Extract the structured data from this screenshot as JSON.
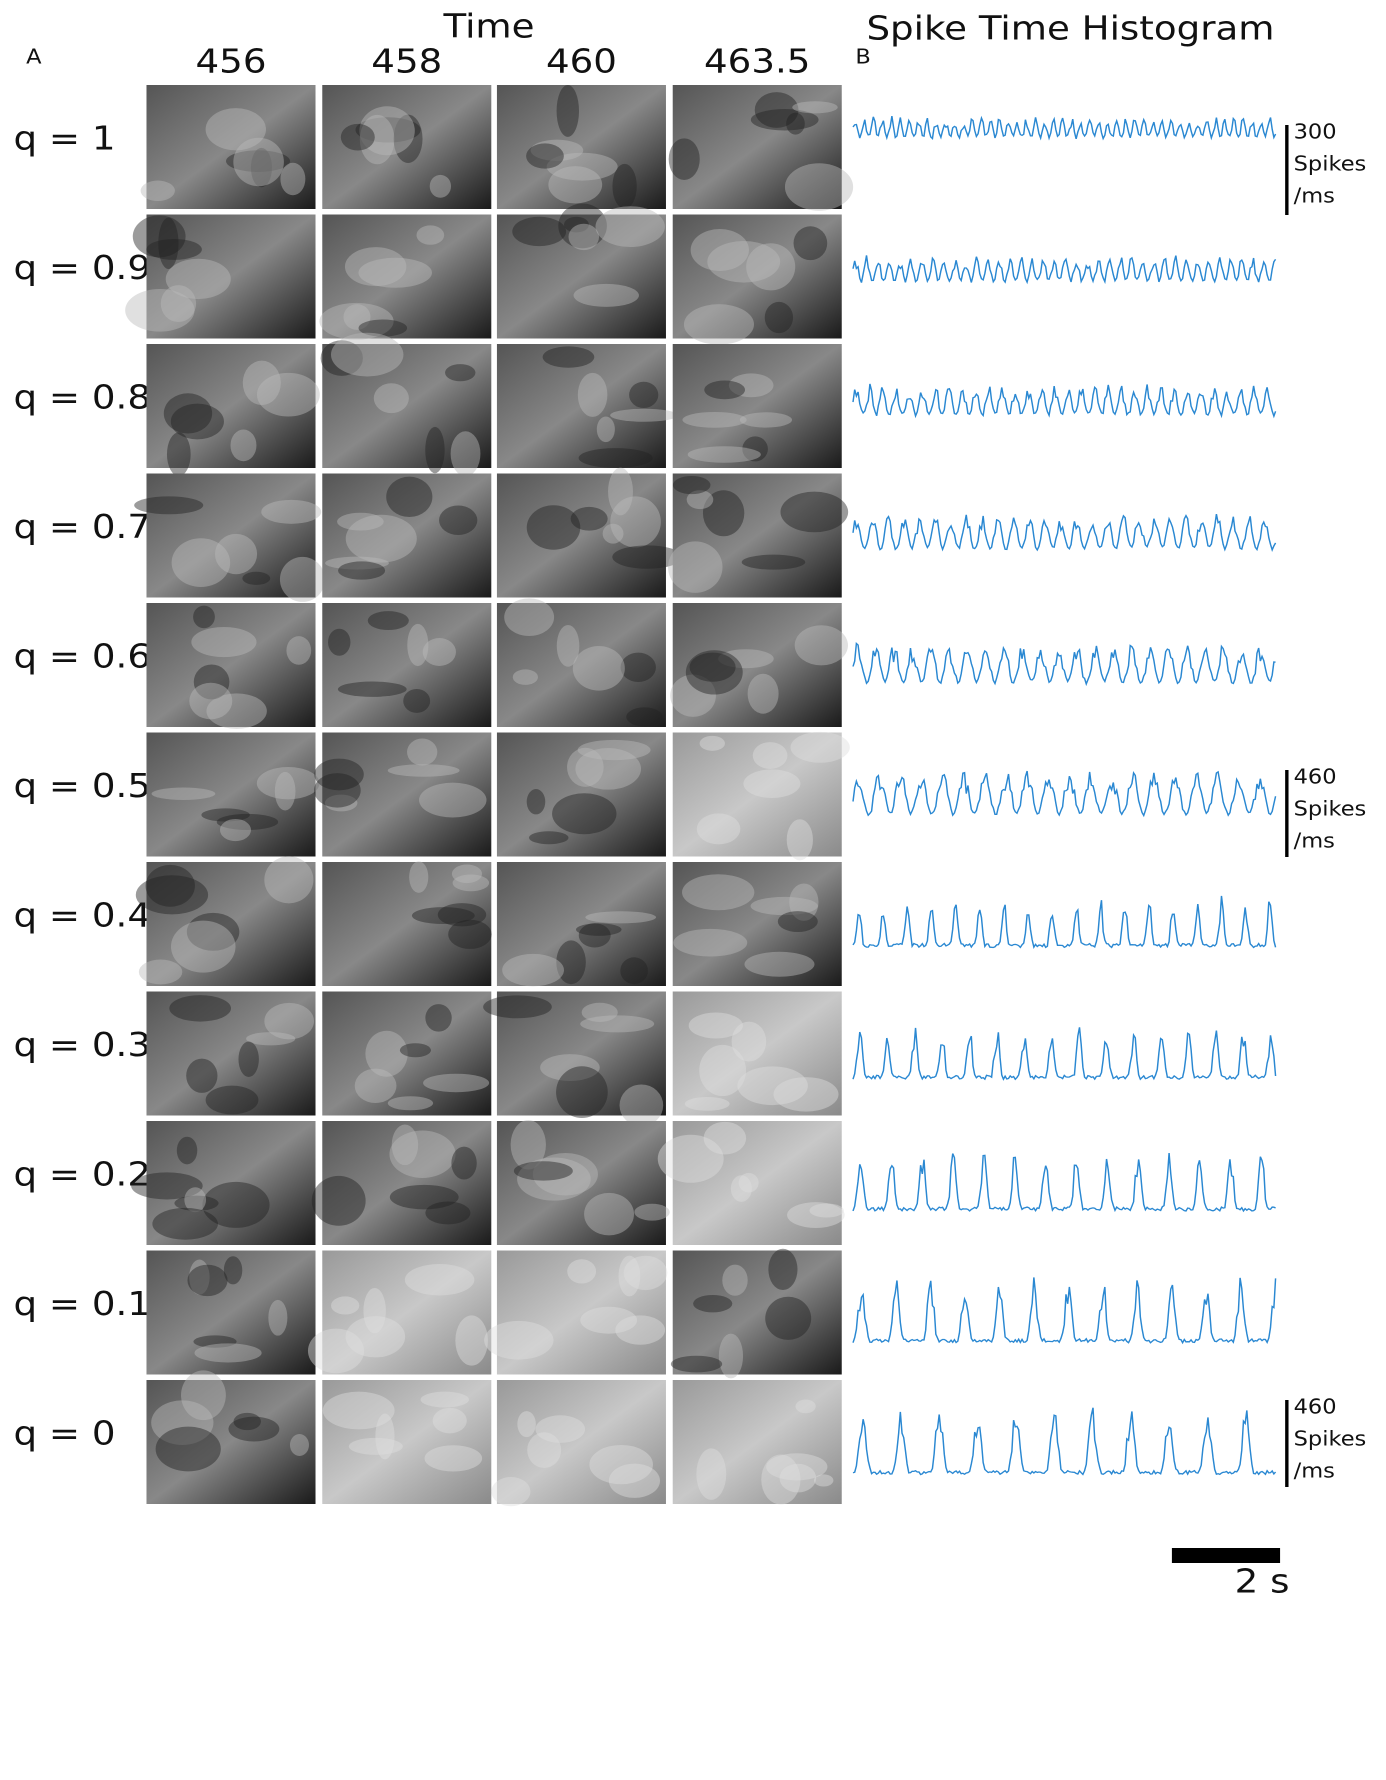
{
  "panel_a_label": "A",
  "panel_b_label": "B",
  "time_label": "Time",
  "histogram_title": "Spike Time Histogram",
  "times": [
    "456",
    "458",
    "460",
    "463.5"
  ],
  "rows": [
    "q = 1",
    "q = 0.9",
    "q = 0.8",
    "q = 0.7",
    "q = 0.6",
    "q = 0.5",
    "q = 0.4",
    "q = 0.3",
    "q = 0.2",
    "q = 0.1",
    "q = 0"
  ],
  "scale_bars": [
    {
      "value": "300",
      "unit": "Spikes",
      "per": "/ms"
    },
    {
      "value": "460",
      "unit": "Spikes",
      "per": "/ms"
    },
    {
      "value": "460",
      "unit": "Spikes",
      "per": "/ms"
    }
  ],
  "time_scale": "2 s"
}
